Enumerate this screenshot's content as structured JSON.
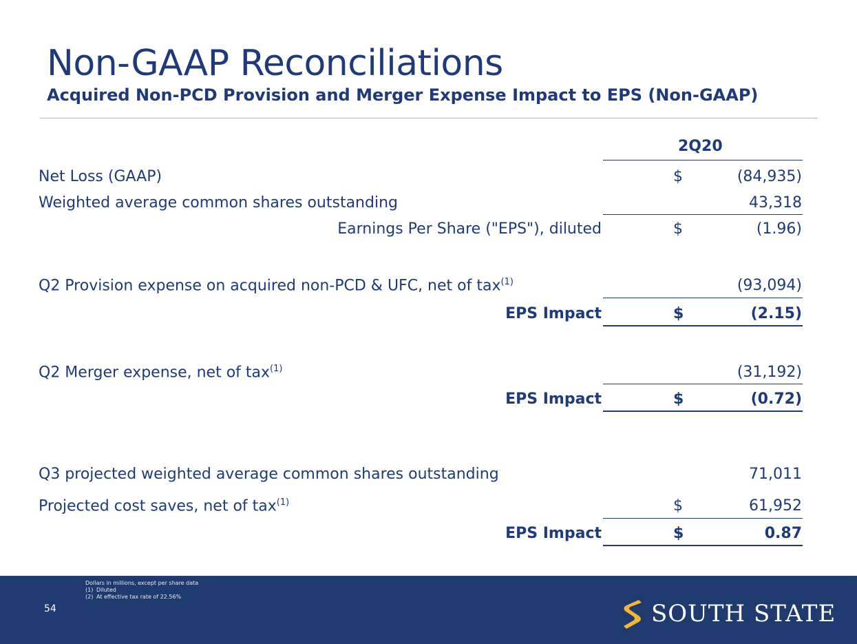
{
  "title": "Non-GAAP Reconciliations",
  "subtitle": "Acquired Non-PCD Provision and Merger Expense Impact to EPS (Non-GAAP)",
  "column_header": "2Q20",
  "rows": {
    "net_loss": {
      "label": "Net Loss (GAAP)",
      "currency": "$",
      "value": "(84,935)"
    },
    "wavg_shares": {
      "label": "Weighted average common shares outstanding",
      "value": "43,318"
    },
    "eps_diluted": {
      "label": "Earnings Per Share (\"EPS\"), diluted",
      "currency": "$",
      "value": "(1.96)"
    },
    "q2_provision": {
      "label": "Q2 Provision expense on acquired non-PCD & UFC, net of tax",
      "sup": "(1)",
      "value": "(93,094)"
    },
    "eps_impact_1": {
      "label": "EPS Impact",
      "currency": "$",
      "value": "(2.15)"
    },
    "q2_merger": {
      "label": "Q2 Merger expense, net of tax",
      "sup": "(1)",
      "value": "(31,192)"
    },
    "eps_impact_2": {
      "label": "EPS Impact",
      "currency": "$",
      "value": "(0.72)"
    },
    "q3_shares": {
      "label": "Q3 projected weighted average common shares outstanding",
      "value": "71,011"
    },
    "cost_saves": {
      "label": "Projected cost saves, net of tax",
      "sup": "(1)",
      "currency": "$",
      "value": "61,952"
    },
    "eps_impact_3": {
      "label": "EPS Impact",
      "currency": "$",
      "value": "0.87"
    }
  },
  "footer": {
    "note_heading": "Dollars in millions, except per share data",
    "notes": [
      {
        "num": "(1)",
        "text": "Diluted"
      },
      {
        "num": "(2)",
        "text": "At effective tax rate of 22.56%"
      }
    ],
    "page_number": "54",
    "logo_text": "SOUTH STATE",
    "colors": {
      "band": "#1f3a6e",
      "logo_mark": "#f2b632"
    }
  }
}
